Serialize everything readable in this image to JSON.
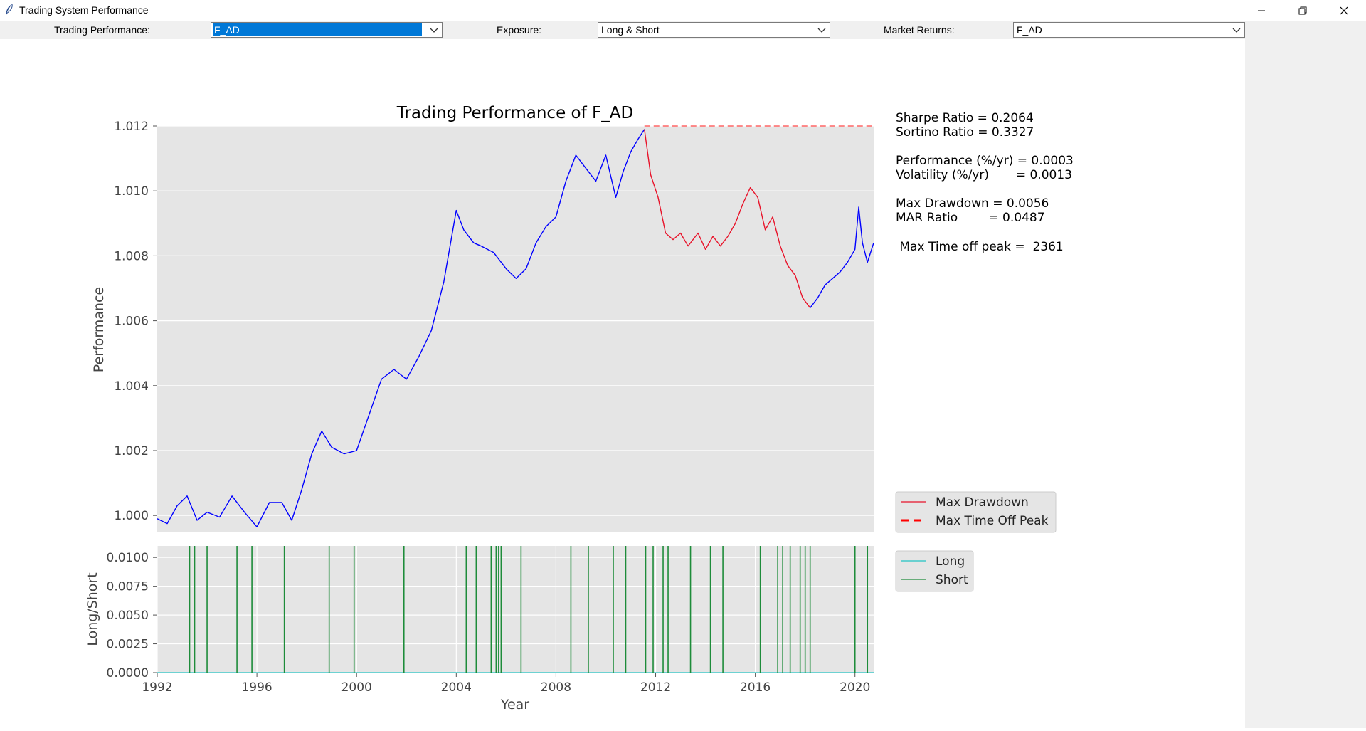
{
  "window": {
    "title": "Trading System Performance"
  },
  "toolbar": {
    "trading_label": "Trading Performance:",
    "trading_value": "F_AD",
    "exposure_label": "Exposure:",
    "exposure_value": "Long & Short",
    "market_label": "Market Returns:",
    "market_value": "F_AD"
  },
  "stats": {
    "sharpe": "Sharpe Ratio = 0.2064",
    "sortino": "Sortino Ratio = 0.3327",
    "performance": "Performance (%/yr) = 0.0003",
    "volatility": "Volatility (%/yr)       = 0.0013",
    "max_drawdown": "Max Drawdown = 0.0056",
    "mar": "MAR Ratio        = 0.0487",
    "time_off_peak": " Max Time off peak =  2361"
  },
  "colors": {
    "performance": "#0000ff",
    "drawdown": "#e8132a",
    "peak_line": "#ff6666",
    "short": "#1e8c3a",
    "long": "#22c3c3",
    "axes_bg": "#e5e5e5"
  },
  "chart_data": [
    {
      "type": "line",
      "title": "Trading Performance of F_AD",
      "xlabel": "",
      "ylabel": "Performance",
      "xlim": [
        1992,
        2020.75
      ],
      "ylim": [
        0.9995,
        1.012
      ],
      "yticks": [
        "1.000",
        "1.002",
        "1.004",
        "1.006",
        "1.008",
        "1.010",
        "1.012"
      ],
      "grid": true,
      "legend": {
        "placement": "right",
        "entries": [
          "Max Drawdown",
          "Max Time Off Peak"
        ]
      },
      "series": [
        {
          "x": [
            1992.0,
            1992.4,
            1992.8,
            1993.2,
            1993.6,
            1994.0,
            1994.5,
            1995.0,
            1995.5,
            1996.0,
            1996.5,
            1997.0,
            1997.4,
            1997.8,
            1998.2,
            1998.6,
            1999.0,
            1999.5,
            2000.0,
            2000.5,
            2001.0,
            2001.5,
            2002.0,
            2002.5,
            2003.0,
            2003.5,
            2004.0,
            2004.3,
            2004.7,
            2005.0,
            2005.5,
            2006.0,
            2006.4,
            2006.8,
            2007.2,
            2007.6,
            2008.0,
            2008.4,
            2008.8,
            2009.2,
            2009.6,
            2010.0,
            2010.4,
            2010.7,
            2011.0,
            2011.3,
            2011.55
          ],
          "y": [
            0.9999,
            0.99975,
            1.0003,
            1.0006,
            0.99985,
            1.0001,
            0.99995,
            1.0006,
            1.0001,
            0.99965,
            1.0004,
            1.0004,
            0.99985,
            1.0008,
            1.0019,
            1.0026,
            1.0021,
            1.0019,
            1.002,
            1.0031,
            1.0042,
            1.0045,
            1.0042,
            1.0049,
            1.0057,
            1.0072,
            1.0094,
            1.0088,
            1.0084,
            1.0083,
            1.0081,
            1.0076,
            1.0073,
            1.0076,
            1.0084,
            1.0089,
            1.0092,
            1.0103,
            1.0111,
            1.0107,
            1.0103,
            1.0111,
            1.0098,
            1.0106,
            1.0112,
            1.0116,
            1.0119
          ]
        },
        {
          "name": "Max Drawdown",
          "x": [
            2011.55,
            2011.8,
            2012.1,
            2012.4,
            2012.7,
            2013.0,
            2013.3,
            2013.7,
            2014.0,
            2014.3,
            2014.6,
            2014.9,
            2015.2,
            2015.5,
            2015.8,
            2016.1,
            2016.4,
            2016.7,
            2017.0,
            2017.3,
            2017.6,
            2017.9,
            2018.2
          ],
          "y": [
            1.0119,
            1.0105,
            1.0098,
            1.0087,
            1.0085,
            1.0087,
            1.0083,
            1.0087,
            1.0082,
            1.0086,
            1.0083,
            1.0086,
            1.009,
            1.0096,
            1.0101,
            1.0098,
            1.0088,
            1.0092,
            1.0083,
            1.0077,
            1.0074,
            1.0067,
            1.0064
          ]
        },
        {
          "x": [
            2018.2,
            2018.5,
            2018.8,
            2019.1,
            2019.4,
            2019.7,
            2020.0,
            2020.15,
            2020.3,
            2020.5,
            2020.75
          ],
          "y": [
            1.0064,
            1.0067,
            1.0071,
            1.0073,
            1.0075,
            1.0078,
            1.0082,
            1.0095,
            1.0084,
            1.0078,
            1.0084
          ]
        },
        {
          "name": "Max Time Off Peak",
          "x": [
            2011.55,
            2020.75
          ],
          "y": [
            1.012,
            1.012
          ]
        }
      ]
    },
    {
      "type": "line",
      "title": "",
      "xlabel": "Year",
      "ylabel": "Long/Short",
      "xlim": [
        1992,
        2020.75
      ],
      "ylim": [
        0,
        0.011
      ],
      "xticks": [
        "1992",
        "1996",
        "2000",
        "2004",
        "2008",
        "2012",
        "2016",
        "2020"
      ],
      "yticks": [
        "0.0000",
        "0.0025",
        "0.0050",
        "0.0075",
        "0.0100"
      ],
      "grid": true,
      "legend": {
        "placement": "right",
        "entries": [
          "Long",
          "Short"
        ]
      },
      "series": [
        {
          "name": "Long",
          "values": []
        },
        {
          "name": "Short",
          "x": [
            1993.3,
            1993.5,
            1994.0,
            1995.2,
            1995.8,
            1997.1,
            1998.9,
            1999.9,
            2001.9,
            2004.4,
            2004.8,
            2005.4,
            2005.6,
            2005.7,
            2005.8,
            2006.6,
            2008.6,
            2009.3,
            2010.3,
            2010.8,
            2011.6,
            2011.9,
            2012.3,
            2012.5,
            2013.4,
            2014.2,
            2014.7,
            2016.2,
            2016.9,
            2017.1,
            2017.4,
            2017.8,
            2018.0,
            2018.2,
            2020.0,
            2020.5
          ]
        }
      ]
    }
  ]
}
